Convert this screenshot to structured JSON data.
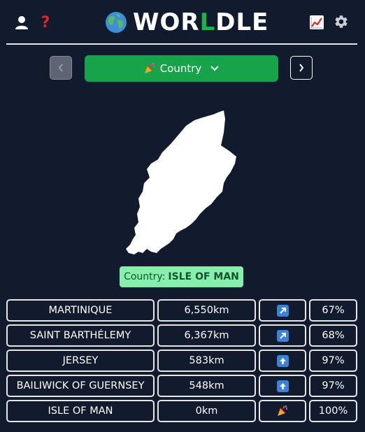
{
  "header": {
    "title_prefix": "WOR",
    "title_mid": "L",
    "title_suffix": "DLE",
    "icons": [
      "user-icon",
      "help-icon",
      "stats-icon",
      "gear-icon",
      "globe-icon"
    ],
    "help_glyph": "?"
  },
  "game_selector": {
    "label": "Country",
    "icon": "party-popper-icon"
  },
  "answer": {
    "prefix": "Country:",
    "value": "ISLE OF MAN"
  },
  "guesses": [
    {
      "name": "MARTINIQUE",
      "distance": "6,550km",
      "direction": "north-east-arrow",
      "percent": "67%"
    },
    {
      "name": "SAINT BARTHÉLEMY",
      "distance": "6,367km",
      "direction": "north-east-arrow",
      "percent": "68%"
    },
    {
      "name": "JERSEY",
      "distance": "583km",
      "direction": "north-arrow",
      "percent": "97%"
    },
    {
      "name": "BAILIWICK OF GUERNSEY",
      "distance": "548km",
      "direction": "north-arrow",
      "percent": "97%"
    },
    {
      "name": "ISLE OF MAN",
      "distance": "0km",
      "direction": "party-popper-icon",
      "percent": "100%"
    }
  ],
  "colors": {
    "background": "#121a2e",
    "accent_green": "#16a34a",
    "answer_green": "#86efac",
    "help_red": "#e02424",
    "arrow_blue": "#3b82d9"
  }
}
